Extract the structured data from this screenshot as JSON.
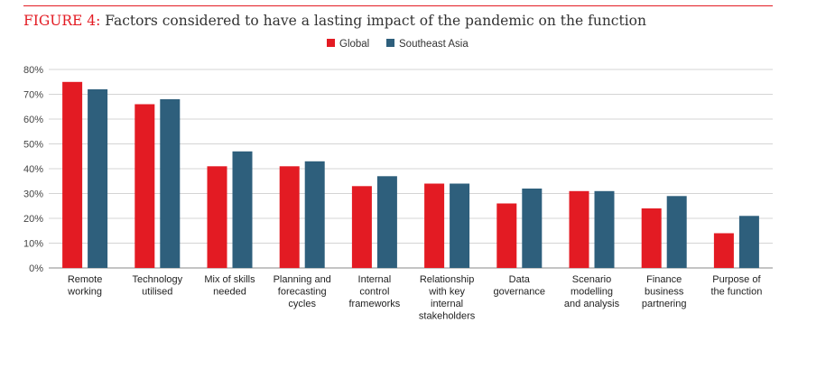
{
  "figure": {
    "label": "FIGURE 4:",
    "title": "Factors considered to have a lasting impact of the pandemic on the function"
  },
  "chart_data": {
    "type": "bar",
    "categories": [
      "Remote working",
      "Technology utilised",
      "Mix of skills needed",
      "Planning and forecasting cycles",
      "Internal control frameworks",
      "Relationship with key internal stakeholders",
      "Data governance",
      "Scenario modelling and analysis",
      "Finance business partnering",
      "Purpose of the function"
    ],
    "category_lines": [
      [
        "Remote",
        "working"
      ],
      [
        "Technology",
        "utilised"
      ],
      [
        "Mix of skills",
        "needed"
      ],
      [
        "Planning and",
        "forecasting",
        "cycles"
      ],
      [
        "Internal",
        "control",
        "frameworks"
      ],
      [
        "Relationship",
        "with key",
        "internal",
        "stakeholders"
      ],
      [
        "Data",
        "governance"
      ],
      [
        "Scenario",
        "modelling",
        "and analysis"
      ],
      [
        "Finance",
        "business",
        "partnering"
      ],
      [
        "Purpose of",
        "the function"
      ]
    ],
    "series": [
      {
        "name": "Global",
        "color": "#e31b23",
        "values": [
          75,
          66,
          41,
          41,
          33,
          34,
          26,
          31,
          24,
          14
        ]
      },
      {
        "name": "Southeast Asia",
        "color": "#2e5f7c",
        "values": [
          72,
          68,
          47,
          43,
          37,
          34,
          32,
          31,
          29,
          21
        ]
      }
    ],
    "ylim": [
      0,
      80
    ],
    "yticks": [
      0,
      10,
      20,
      30,
      40,
      50,
      60,
      70,
      80
    ],
    "ytick_labels": [
      "0%",
      "10%",
      "20%",
      "30%",
      "40%",
      "50%",
      "60%",
      "70%",
      "80%"
    ],
    "grid": true,
    "legend_position": "top-center"
  }
}
